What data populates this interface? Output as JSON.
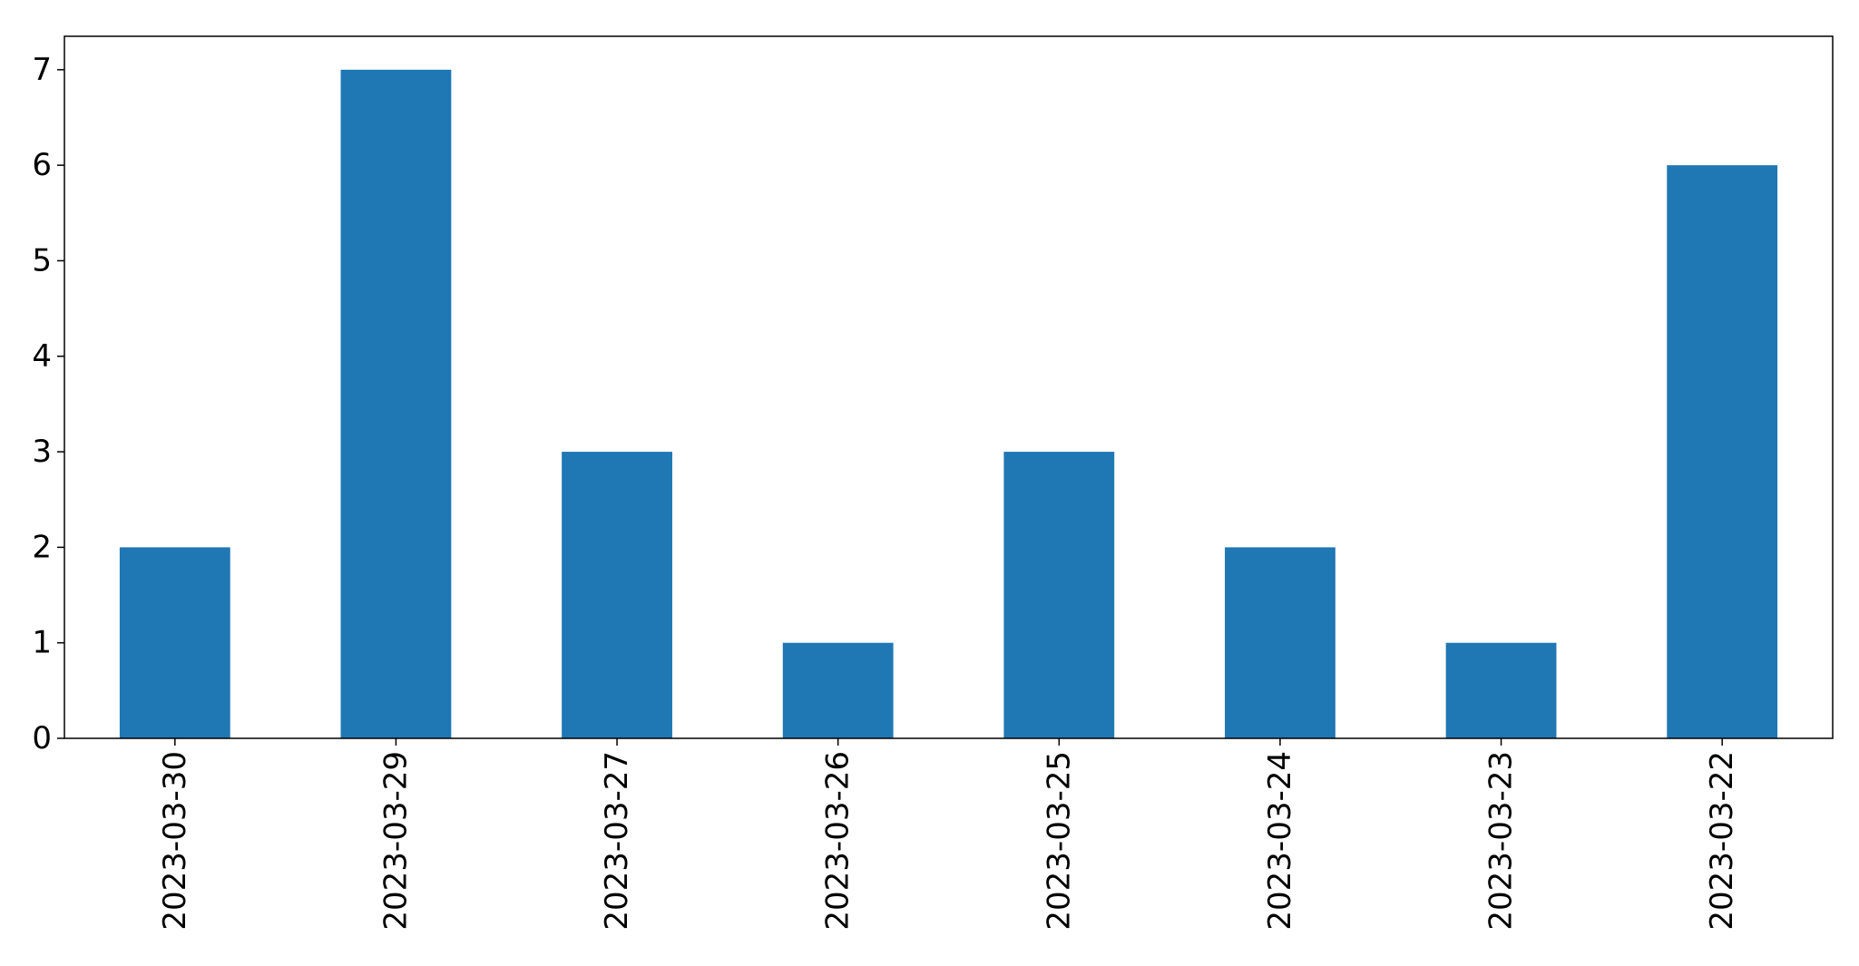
{
  "chart_data": {
    "type": "bar",
    "title": "",
    "xlabel": "",
    "ylabel": "",
    "categories": [
      "2023-03-30",
      "2023-03-29",
      "2023-03-27",
      "2023-03-26",
      "2023-03-25",
      "2023-03-24",
      "2023-03-23",
      "2023-03-22"
    ],
    "values": [
      2,
      7,
      3,
      1,
      3,
      2,
      1,
      6
    ],
    "ylim": [
      0,
      7.35
    ],
    "yticks": [
      "0",
      "1",
      "2",
      "3",
      "4",
      "5",
      "6",
      "7"
    ],
    "grid": false,
    "legend": "none",
    "colors": {
      "bar": "#1f77b4",
      "axis": "#000000",
      "background": "#ffffff"
    }
  }
}
